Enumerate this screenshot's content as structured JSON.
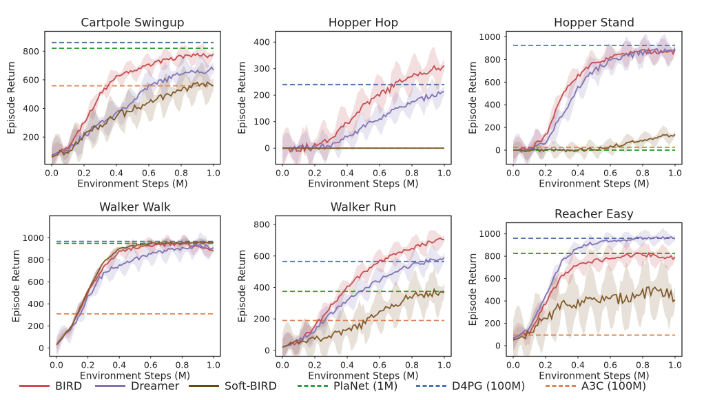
{
  "colors": {
    "BIRD": "#c44e52",
    "Dreamer": "#8172b2",
    "Soft-BIRD": "#7f5a2a",
    "PlaNet (1M)": "#2ca02c",
    "D4PG (100M)": "#4c72b0",
    "A3C (100M)": "#dd8452"
  },
  "legend": {
    "entries": [
      {
        "label": "BIRD",
        "style": "solid",
        "color": "#c44e52"
      },
      {
        "label": "Dreamer",
        "style": "solid",
        "color": "#8172b2"
      },
      {
        "label": "Soft-BIRD",
        "style": "solid",
        "color": "#6b4a12"
      },
      {
        "label": "PlaNet (1M)",
        "style": "dashed",
        "color": "#2a9d4a"
      },
      {
        "label": "D4PG (100M)",
        "style": "dashed",
        "color": "#4c72b0"
      },
      {
        "label": "A3C (100M)",
        "style": "dashed",
        "color": "#dd8452"
      }
    ]
  },
  "chart_data": [
    {
      "type": "line",
      "title": "Cartpole Swingup",
      "xlabel": "Environment Steps (M)",
      "ylabel": "Episode Return",
      "xlim": [
        0,
        1.0
      ],
      "ylim": [
        30,
        900
      ],
      "xticks": [
        "0.0",
        "0.2",
        "0.4",
        "0.6",
        "0.8",
        "1.0"
      ],
      "yticks": [
        200,
        400,
        600,
        800
      ],
      "x": [
        0,
        0.1,
        0.2,
        0.3,
        0.4,
        0.5,
        0.6,
        0.7,
        0.8,
        0.9,
        1.0
      ],
      "series": [
        {
          "name": "BIRD",
          "values": [
            70,
            130,
            300,
            500,
            620,
            660,
            700,
            740,
            760,
            770,
            770
          ],
          "band": 80
        },
        {
          "name": "Dreamer",
          "values": [
            75,
            120,
            210,
            300,
            370,
            450,
            550,
            600,
            640,
            660,
            670
          ],
          "band": 120
        },
        {
          "name": "Soft-BIRD",
          "values": [
            60,
            110,
            200,
            290,
            350,
            390,
            440,
            480,
            520,
            560,
            570
          ],
          "band": 150
        }
      ],
      "baselines": [
        {
          "name": "PlaNet (1M)",
          "value": 820
        },
        {
          "name": "D4PG (100M)",
          "value": 860
        },
        {
          "name": "A3C (100M)",
          "value": 558
        }
      ]
    },
    {
      "type": "line",
      "title": "Hopper Hop",
      "xlabel": "Environment Steps (M)",
      "ylabel": "Episode Return",
      "xlim": [
        0,
        1.0
      ],
      "ylim": [
        -50,
        420
      ],
      "xticks": [
        "0.0",
        "0.2",
        "0.4",
        "0.6",
        "0.8",
        "1.0"
      ],
      "yticks": [
        0,
        100,
        200,
        300,
        400
      ],
      "x": [
        0,
        0.1,
        0.2,
        0.3,
        0.4,
        0.5,
        0.6,
        0.7,
        0.8,
        0.9,
        1.0
      ],
      "series": [
        {
          "name": "BIRD",
          "values": [
            0,
            0,
            5,
            40,
            100,
            155,
            200,
            240,
            270,
            295,
            300
          ],
          "band": 80
        },
        {
          "name": "Dreamer",
          "values": [
            0,
            0,
            0,
            10,
            40,
            80,
            115,
            145,
            170,
            195,
            215
          ],
          "band": 60
        },
        {
          "name": "Soft-BIRD",
          "values": [
            0,
            0,
            0,
            0,
            0,
            0,
            0,
            0,
            0,
            0,
            0
          ],
          "band": 0
        }
      ],
      "baselines": [
        {
          "name": "PlaNet (1M)",
          "value": 0
        },
        {
          "name": "D4PG (100M)",
          "value": 240
        },
        {
          "name": "A3C (100M)",
          "value": 0
        }
      ]
    },
    {
      "type": "line",
      "title": "Hopper Stand",
      "xlabel": "Environment Steps (M)",
      "ylabel": "Episode Return",
      "xlim": [
        0,
        1.0
      ],
      "ylim": [
        -100,
        1000
      ],
      "xticks": [
        "0.0",
        "0.2",
        "0.4",
        "0.6",
        "0.8",
        "1.0"
      ],
      "yticks": [
        0,
        200,
        400,
        600,
        800,
        1000
      ],
      "x": [
        0,
        0.1,
        0.2,
        0.3,
        0.4,
        0.5,
        0.6,
        0.7,
        0.8,
        0.9,
        1.0
      ],
      "series": [
        {
          "name": "BIRD",
          "values": [
            0,
            5,
            120,
            480,
            660,
            770,
            820,
            850,
            870,
            870,
            870
          ],
          "band": 120
        },
        {
          "name": "Dreamer",
          "values": [
            0,
            0,
            60,
            300,
            550,
            700,
            790,
            830,
            860,
            870,
            880
          ],
          "band": 150
        },
        {
          "name": "Soft-BIRD",
          "values": [
            0,
            0,
            0,
            0,
            0,
            5,
            30,
            60,
            90,
            120,
            130
          ],
          "band": 80
        }
      ],
      "baselines": [
        {
          "name": "PlaNet (1M)",
          "value": 0
        },
        {
          "name": "D4PG (100M)",
          "value": 925
        },
        {
          "name": "A3C (100M)",
          "value": 25
        }
      ]
    },
    {
      "type": "line",
      "title": "Walker Walk",
      "xlabel": "Environment Steps (M)",
      "ylabel": "Episode Return",
      "xlim": [
        0,
        1.0
      ],
      "ylim": [
        -50,
        1150
      ],
      "xticks": [
        "0.0",
        "0.2",
        "0.4",
        "0.6",
        "0.8",
        "1.0"
      ],
      "yticks": [
        0,
        200,
        400,
        600,
        800,
        1000
      ],
      "x": [
        0,
        0.1,
        0.2,
        0.3,
        0.4,
        0.5,
        0.6,
        0.7,
        0.8,
        0.9,
        1.0
      ],
      "series": [
        {
          "name": "BIRD",
          "values": [
            30,
            200,
            500,
            740,
            870,
            910,
            930,
            940,
            940,
            920,
            880
          ],
          "band": 80
        },
        {
          "name": "Dreamer",
          "values": [
            30,
            180,
            460,
            680,
            750,
            800,
            850,
            880,
            900,
            930,
            900
          ],
          "band": 120
        },
        {
          "name": "Soft-BIRD",
          "values": [
            30,
            210,
            520,
            780,
            900,
            930,
            950,
            950,
            955,
            960,
            960
          ],
          "band": 40
        }
      ],
      "baselines": [
        {
          "name": "PlaNet (1M)",
          "value": 950
        },
        {
          "name": "D4PG (100M)",
          "value": 968
        },
        {
          "name": "A3C (100M)",
          "value": 310
        }
      ]
    },
    {
      "type": "line",
      "title": "Walker Run",
      "xlabel": "Environment Steps (M)",
      "ylabel": "Episode Return",
      "xlim": [
        0,
        1.0
      ],
      "ylim": [
        -20,
        820
      ],
      "xticks": [
        "0.0",
        "0.2",
        "0.4",
        "0.6",
        "0.8",
        "1.0"
      ],
      "yticks": [
        0,
        200,
        400,
        600,
        800
      ],
      "x": [
        0,
        0.1,
        0.2,
        0.3,
        0.4,
        0.5,
        0.6,
        0.7,
        0.8,
        0.9,
        1.0
      ],
      "series": [
        {
          "name": "BIRD",
          "values": [
            20,
            60,
            150,
            280,
            400,
            490,
            560,
            610,
            650,
            680,
            710
          ],
          "band": 80
        },
        {
          "name": "Dreamer",
          "values": [
            20,
            55,
            130,
            230,
            320,
            390,
            450,
            500,
            540,
            570,
            590
          ],
          "band": 90
        },
        {
          "name": "Soft-BIRD",
          "values": [
            20,
            60,
            80,
            90,
            120,
            170,
            240,
            300,
            340,
            365,
            375
          ],
          "band": 150
        }
      ],
      "baselines": [
        {
          "name": "PlaNet (1M)",
          "value": 375
        },
        {
          "name": "D4PG (100M)",
          "value": 565
        },
        {
          "name": "A3C (100M)",
          "value": 190
        }
      ]
    },
    {
      "type": "line",
      "title": "Reacher Easy",
      "xlabel": "Environment Steps (M)",
      "ylabel": "Episode Return",
      "xlim": [
        0,
        1.0
      ],
      "ylim": [
        -70,
        1050
      ],
      "xticks": [
        "0.0",
        "0.2",
        "0.4",
        "0.6",
        "0.8",
        "1.0"
      ],
      "yticks": [
        0,
        200,
        400,
        600,
        800,
        1000
      ],
      "x": [
        0,
        0.1,
        0.2,
        0.3,
        0.4,
        0.5,
        0.6,
        0.7,
        0.8,
        0.9,
        1.0
      ],
      "series": [
        {
          "name": "BIRD",
          "values": [
            70,
            120,
            380,
            620,
            730,
            760,
            780,
            800,
            820,
            800,
            780
          ],
          "band": 120
        },
        {
          "name": "Dreamer",
          "values": [
            60,
            150,
            450,
            750,
            880,
            920,
            940,
            950,
            960,
            960,
            960
          ],
          "band": 80
        },
        {
          "name": "Soft-BIRD",
          "values": [
            50,
            100,
            250,
            360,
            390,
            400,
            410,
            430,
            470,
            480,
            440
          ],
          "band": 300
        }
      ],
      "baselines": [
        {
          "name": "PlaNet (1M)",
          "value": 825
        },
        {
          "name": "D4PG (100M)",
          "value": 960
        },
        {
          "name": "A3C (100M)",
          "value": 95
        }
      ]
    }
  ]
}
